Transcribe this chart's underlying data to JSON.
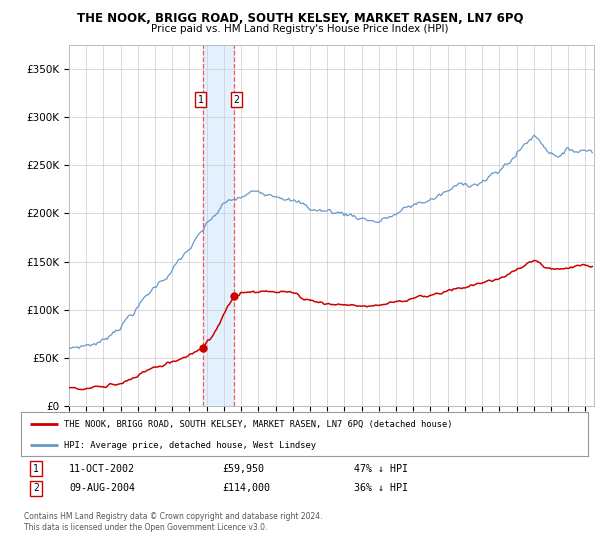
{
  "title": "THE NOOK, BRIGG ROAD, SOUTH KELSEY, MARKET RASEN, LN7 6PQ",
  "subtitle": "Price paid vs. HM Land Registry's House Price Index (HPI)",
  "legend_label_red": "THE NOOK, BRIGG ROAD, SOUTH KELSEY, MARKET RASEN, LN7 6PQ (detached house)",
  "legend_label_blue": "HPI: Average price, detached house, West Lindsey",
  "transaction1_date": "11-OCT-2002",
  "transaction1_price": "£59,950",
  "transaction1_hpi": "47% ↓ HPI",
  "transaction2_date": "09-AUG-2004",
  "transaction2_price": "£114,000",
  "transaction2_hpi": "36% ↓ HPI",
  "footnote": "Contains HM Land Registry data © Crown copyright and database right 2024.\nThis data is licensed under the Open Government Licence v3.0.",
  "transaction1_x": 2002.78,
  "transaction2_x": 2004.6,
  "transaction1_y": 59950,
  "transaction2_y": 114000,
  "ylim": [
    0,
    375000
  ],
  "xlim_start": 1995,
  "xlim_end": 2025.5,
  "red_color": "#cc0000",
  "blue_color": "#6699cc",
  "grid_color": "#cccccc",
  "background_color": "#ffffff",
  "shaded_region_color": "#ddeeff",
  "dashed_line_color": "#ff5555"
}
